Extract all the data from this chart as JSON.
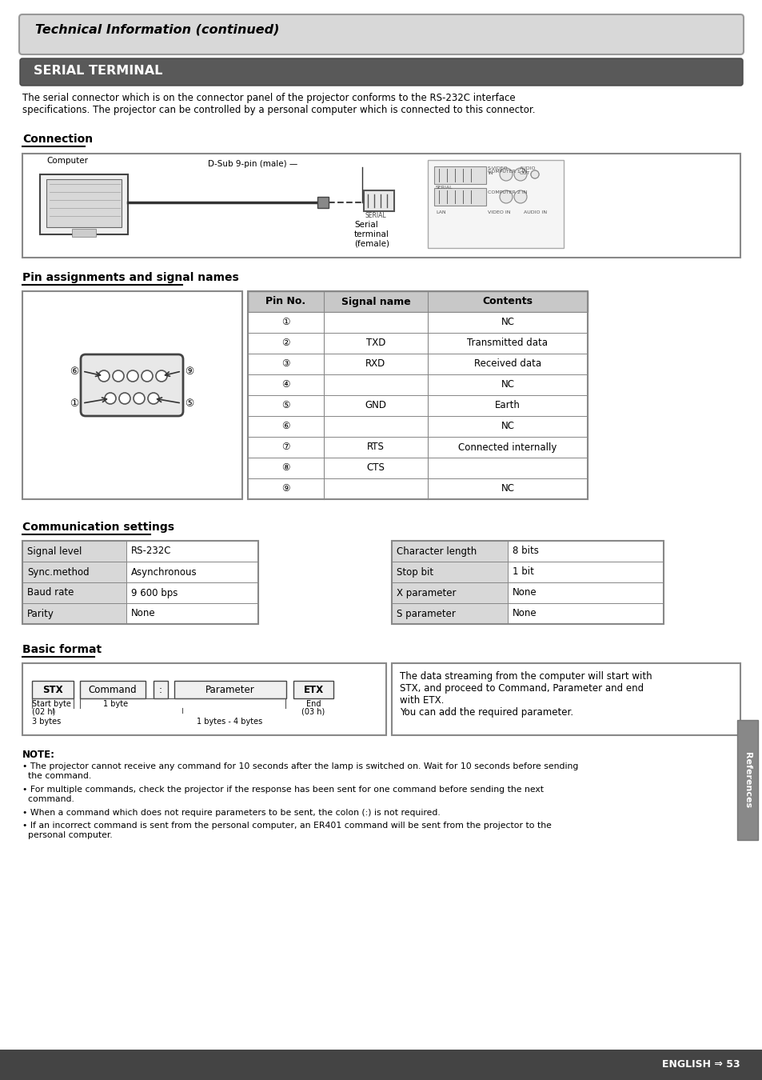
{
  "page_bg": "#ffffff",
  "top_banner_text": "Technical Information (continued)",
  "section_title": "SERIAL TERMINAL",
  "intro_text": "The serial connector which is on the connector panel of the projector conforms to the RS-232C interface\nspecifications. The projector can be controlled by a personal computer which is connected to this connector.",
  "connection_title": "Connection",
  "pin_title": "Pin assignments and signal names",
  "pin_table_header": [
    "Pin No.",
    "Signal name",
    "Contents"
  ],
  "pin_table_rows": [
    [
      "①",
      "",
      "NC"
    ],
    [
      "②",
      "TXD",
      "Transmitted data"
    ],
    [
      "③",
      "RXD",
      "Received data"
    ],
    [
      "④",
      "",
      "NC"
    ],
    [
      "⑤",
      "GND",
      "Earth"
    ],
    [
      "⑥",
      "",
      "NC"
    ],
    [
      "⑦",
      "RTS",
      "Connected internally"
    ],
    [
      "⑧",
      "CTS",
      ""
    ],
    [
      "⑨",
      "",
      "NC"
    ]
  ],
  "comm_title": "Communication settings",
  "comm_left_rows": [
    [
      "Signal level",
      "RS-232C"
    ],
    [
      "Sync.method",
      "Asynchronous"
    ],
    [
      "Baud rate",
      "9 600 bps"
    ],
    [
      "Parity",
      "None"
    ]
  ],
  "comm_right_rows": [
    [
      "Character length",
      "8 bits"
    ],
    [
      "Stop bit",
      "1 bit"
    ],
    [
      "X parameter",
      "None"
    ],
    [
      "S parameter",
      "None"
    ]
  ],
  "basic_format_title": "Basic format",
  "basic_format_boxes": [
    "STX",
    "Command",
    ":",
    "Parameter",
    "ETX"
  ],
  "basic_format_desc": "The data streaming from the computer will start with\nSTX, and proceed to Command, Parameter and end\nwith ETX.\nYou can add the required parameter.",
  "note_title": "NOTE:",
  "note_bullets": [
    "• The projector cannot receive any command for 10 seconds after the lamp is switched on. Wait for 10 seconds before sending\n  the command.",
    "• For multiple commands, check the projector if the response has been sent for one command before sending the next\n  command.",
    "• When a command which does not require parameters to be sent, the colon (:) is not required.",
    "• If an incorrect command is sent from the personal computer, an ER401 command will be sent from the projector to the\n  personal computer."
  ],
  "references_label": "References",
  "page_number": "ENGLISH ⇒ 53",
  "table_header_bg": "#c8c8c8",
  "table_border": "#888888",
  "comm_label_bg": "#d8d8d8"
}
